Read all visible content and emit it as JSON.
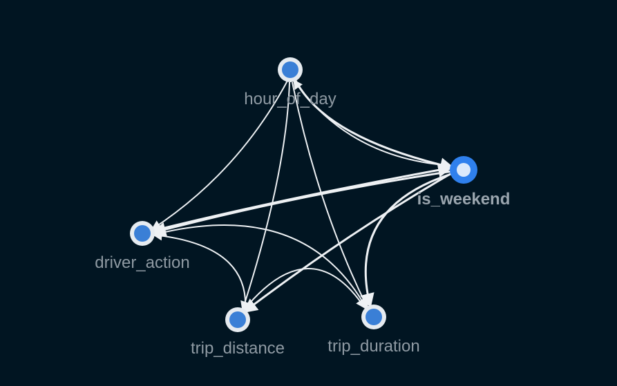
{
  "graph": {
    "nodes": [
      {
        "id": "hour_of_day",
        "label": "hour_of_day",
        "selected": false
      },
      {
        "id": "is_weekend",
        "label": "is_weekend",
        "selected": true
      },
      {
        "id": "driver_action",
        "label": "driver_action",
        "selected": false
      },
      {
        "id": "trip_distance",
        "label": "trip_distance",
        "selected": false
      },
      {
        "id": "trip_duration",
        "label": "trip_duration",
        "selected": false
      }
    ],
    "edges": [
      {
        "from": "hour_of_day",
        "to": "is_weekend"
      },
      {
        "from": "is_weekend",
        "to": "hour_of_day"
      },
      {
        "from": "hour_of_day",
        "to": "driver_action"
      },
      {
        "from": "hour_of_day",
        "to": "trip_distance"
      },
      {
        "from": "hour_of_day",
        "to": "trip_duration"
      },
      {
        "from": "driver_action",
        "to": "is_weekend"
      },
      {
        "from": "is_weekend",
        "to": "driver_action"
      },
      {
        "from": "is_weekend",
        "to": "trip_distance"
      },
      {
        "from": "is_weekend",
        "to": "trip_duration"
      },
      {
        "from": "driver_action",
        "to": "trip_duration"
      },
      {
        "from": "trip_distance",
        "to": "driver_action"
      },
      {
        "from": "trip_distance",
        "to": "trip_duration"
      }
    ]
  }
}
